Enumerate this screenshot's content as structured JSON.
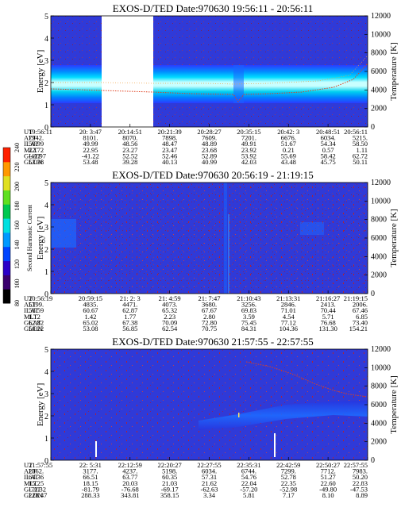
{
  "panels": [
    {
      "title": "EXOS-D/TED   Date:970630  19:56:11 - 20:56:11",
      "ylabel": "Energy [eV]",
      "y2label": "Temperature [K]",
      "y_ticks": [
        "0",
        "1",
        "2",
        "3",
        "4",
        "5"
      ],
      "y2_ticks": [
        "0",
        "2000",
        "4000",
        "6000",
        "8000",
        "10000",
        "12000"
      ],
      "row_labels": [
        "UT",
        "ALT",
        "ILAT",
        "MLT",
        "GLAT",
        "GLON"
      ],
      "columns": [
        [
          "19:56:11",
          "7942.",
          "50.99",
          "22.72",
          "-42.97",
          "53.38"
        ],
        [
          "20: 3:47",
          "8101.",
          "49.99",
          "22.95",
          "-41.22",
          "53.48"
        ],
        [
          "20:14:51",
          "8070.",
          "48.56",
          "23.27",
          "52.52",
          "39.28"
        ],
        [
          "20:21:39",
          "7898.",
          "48.47",
          "23.47",
          "52.46",
          "40.13"
        ],
        [
          "20:28:27",
          "7609.",
          "48.89",
          "23.68",
          "52.89",
          "40.99"
        ],
        [
          "20:35:15",
          "7201.",
          "49.91",
          "23.92",
          "53.92",
          "42.03"
        ],
        [
          "20:42: 3",
          "6676.",
          "51.67",
          "0.21",
          "55.69",
          "43.48"
        ],
        [
          "20:48:51",
          "6034.",
          "54.34",
          "0.57",
          "58.42",
          "45.75"
        ],
        [
          "20:56:11",
          "5215.",
          "58.50",
          "1.11",
          "62.72",
          "50.11"
        ]
      ]
    },
    {
      "title": "EXOS-D/TED   Date:970630  20:56:19 - 21:19:15",
      "ylabel": "Energy [eV]",
      "y2label": "Temperature [K]",
      "y_ticks": [
        "0",
        "1",
        "2",
        "3",
        "4",
        "5"
      ],
      "y2_ticks": [
        "0",
        "2000",
        "4000",
        "6000",
        "8000",
        "10000",
        "12000"
      ],
      "row_labels": [
        "UT",
        "ALT",
        "ILAT",
        "MLT",
        "GLAT",
        "GLON"
      ],
      "columns": [
        [
          "20:56:19",
          "5199.",
          "58.59",
          "1.12",
          "62.82",
          "50.22"
        ],
        [
          "20:59:15",
          "4835.",
          "60.67",
          "1.42",
          "65.02",
          "53.08"
        ],
        [
          "21: 2: 3",
          "4471.",
          "62.87",
          "1.77",
          "67.38",
          "56.85"
        ],
        [
          "21: 4:59",
          "4073.",
          "65.32",
          "2.23",
          "70.09",
          "62.54"
        ],
        [
          "21: 7:47",
          "3680.",
          "67.67",
          "2.80",
          "72.80",
          "70.75"
        ],
        [
          "21:10:43",
          "3256.",
          "69.83",
          "3.59",
          "75.45",
          "84.31"
        ],
        [
          "21:13:31",
          "2846.",
          "71.01",
          "4.54",
          "77.12",
          "104.36"
        ],
        [
          "21:16:27",
          "2413.",
          "70.44",
          "5.71",
          "76.68",
          "131.30"
        ],
        [
          "21:19:15",
          "2006.",
          "67.46",
          "6.85",
          "73.40",
          "154.21"
        ]
      ]
    },
    {
      "title": "EXOS-D/TED   Date:970630  21:57:55 - 22:57:55",
      "ylabel": "Energy [eV]",
      "y2label": "Temperature [K]",
      "y_ticks": [
        "0",
        "1",
        "2",
        "3",
        "4",
        "5"
      ],
      "y2_ticks": [
        "0",
        "2000",
        "4000",
        "6000",
        "8000",
        "10000",
        "12000"
      ],
      "row_labels": [
        "UT",
        "ALT",
        "ILAT",
        "MLT",
        "GLAT",
        "GLON"
      ],
      "columns": [
        [
          "21:57:55",
          "2062.",
          "64.36",
          "15.25",
          "-72.32",
          "228.47"
        ],
        [
          "22: 5:31",
          "3177.",
          "66.51",
          "18.15",
          "-81.79",
          "288.33"
        ],
        [
          "22:12:59",
          "4237.",
          "63.77",
          "20.03",
          "-76.68",
          "343.81"
        ],
        [
          "22:20:27",
          "5198.",
          "60.35",
          "21.03",
          "-69.17",
          "358.15"
        ],
        [
          "22:27:55",
          "6034.",
          "57.31",
          "21.62",
          "-62.63",
          "3.34"
        ],
        [
          "22:35:31",
          "6744.",
          "54.76",
          "22.04",
          "-57.20",
          "5.81"
        ],
        [
          "22:42:59",
          "7299.",
          "52.78",
          "22.35",
          "-52.98",
          "7.17"
        ],
        [
          "22:50:27",
          "7712.",
          "51.27",
          "22.60",
          "-49.80",
          "8.10"
        ],
        [
          "22:57:55",
          "7983.",
          "50.20",
          "22.83",
          "-47.53",
          "8.89"
        ]
      ]
    }
  ],
  "colorbar": {
    "label": "Second Harmonic Current",
    "ticks": [
      "80",
      "100",
      "120",
      "140",
      "160",
      "180",
      "200",
      "220",
      "240"
    ],
    "colors": [
      "#000000",
      "#3a006e",
      "#2a00c8",
      "#0044ff",
      "#0099ff",
      "#00e0e0",
      "#00c850",
      "#60e020",
      "#e0e020",
      "#ff9900",
      "#ff2000"
    ]
  },
  "chart_data": [
    {
      "type": "heatmap",
      "title": "EXOS-D/TED   Date:970630  19:56:11 - 20:56:11",
      "xlabel": "UT",
      "ylabel": "Energy [eV]",
      "y2label": "Temperature [K]",
      "ylim": [
        0,
        5
      ],
      "y2lim": [
        0,
        12000
      ],
      "x_ticks": [
        "19:56:11",
        "20: 3:47",
        "20:14:51",
        "20:21:39",
        "20:28:27",
        "20:35:15",
        "20:42: 3",
        "20:48:51",
        "20:56:11"
      ],
      "colorbar_label": "Second Harmonic Current",
      "colorbar_range": [
        80,
        240
      ],
      "features": {
        "data_gap": {
          "x_start": "20: 3:47",
          "x_end": "20:14:51"
        },
        "band_center_eV": 2.0,
        "band_half_width_eV": 0.5
      },
      "temperature_trace_K": [
        [
          0,
          3600
        ],
        [
          0.1,
          3550
        ],
        [
          0.3,
          3500
        ],
        [
          0.5,
          3450
        ],
        [
          0.55,
          3300
        ],
        [
          0.6,
          3500
        ],
        [
          0.7,
          3550
        ],
        [
          0.8,
          3700
        ],
        [
          0.9,
          4100
        ],
        [
          0.97,
          5000
        ],
        [
          1.0,
          5800
        ]
      ]
    },
    {
      "type": "heatmap",
      "title": "EXOS-D/TED   Date:970630  20:56:19 - 21:19:15",
      "xlabel": "UT",
      "ylabel": "Energy [eV]",
      "y2label": "Temperature [K]",
      "ylim": [
        0,
        5
      ],
      "y2lim": [
        0,
        12000
      ],
      "x_ticks": [
        "20:56:19",
        "20:59:15",
        "21: 2: 3",
        "21: 4:59",
        "21: 7:47",
        "21:10:43",
        "21:13:31",
        "21:16:27",
        "21:19:15"
      ],
      "colorbar_label": "Second Harmonic Current",
      "colorbar_range": [
        80,
        240
      ]
    },
    {
      "type": "heatmap",
      "title": "EXOS-D/TED   Date:970630  21:57:55 - 22:57:55",
      "xlabel": "UT",
      "ylabel": "Energy [eV]",
      "y2label": "Temperature [K]",
      "ylim": [
        0,
        5
      ],
      "y2lim": [
        0,
        12000
      ],
      "x_ticks": [
        "21:57:55",
        "22: 5:31",
        "22:12:59",
        "22:20:27",
        "22:27:55",
        "22:35:31",
        "22:42:59",
        "22:50:27",
        "22:57:55"
      ],
      "colorbar_label": "Second Harmonic Current",
      "colorbar_range": [
        80,
        240
      ],
      "temperature_trace_K": [
        [
          0.62,
          10800
        ],
        [
          0.7,
          10200
        ],
        [
          0.78,
          9200
        ],
        [
          0.86,
          8200
        ],
        [
          0.93,
          7400
        ],
        [
          1.0,
          7000
        ]
      ]
    }
  ]
}
